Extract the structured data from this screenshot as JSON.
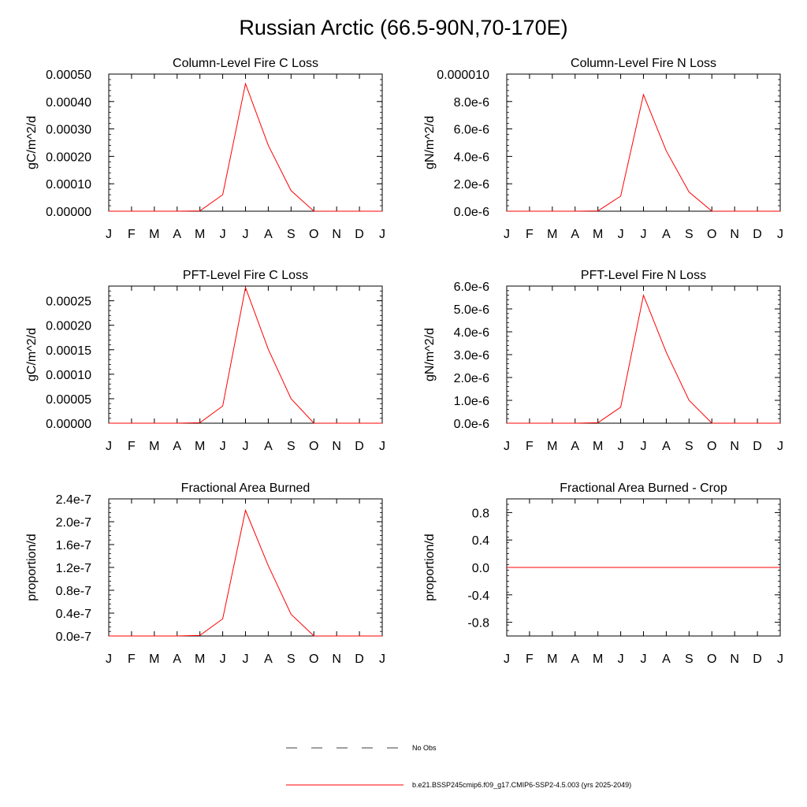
{
  "title": "Russian Arctic (66.5-90N,70-170E)",
  "colors": {
    "model": "#ff0000",
    "obs": "#000000",
    "axis": "#000000"
  },
  "legend": {
    "obs_label": "No Obs",
    "model_label": "b.e21.BSSP245cmip6.f09_g17.CMIP6-SSP2-4.5.003 (yrs 2025-2049)"
  },
  "chart_data": [
    {
      "type": "line",
      "title": "Column-Level Fire C Loss",
      "ylabel": "gC/m^2/d",
      "categories": [
        "J",
        "F",
        "M",
        "A",
        "M",
        "J",
        "J",
        "A",
        "S",
        "O",
        "N",
        "D",
        "J"
      ],
      "ylim": [
        0,
        0.0005
      ],
      "yticks": [
        0,
        0.0001,
        0.0002,
        0.0003,
        0.0004,
        0.0005
      ],
      "yticklabels": [
        "0.00000",
        "0.00010",
        "0.00020",
        "0.00030",
        "0.00040",
        "0.00050"
      ],
      "series": [
        {
          "values": [
            0,
            0,
            0,
            0,
            1e-06,
            6e-05,
            0.000465,
            0.00024,
            7.5e-05,
            3e-07,
            0,
            0,
            0
          ]
        }
      ]
    },
    {
      "type": "line",
      "title": "Column-Level Fire N Loss",
      "ylabel": "gN/m^2/d",
      "categories": [
        "J",
        "F",
        "M",
        "A",
        "M",
        "J",
        "J",
        "A",
        "S",
        "O",
        "N",
        "D",
        "J"
      ],
      "ylim": [
        0,
        1e-05
      ],
      "yticks": [
        0,
        2e-06,
        4e-06,
        6e-06,
        8e-06,
        1e-05
      ],
      "yticklabels": [
        "0.0e-6",
        "2.0e-6",
        "4.0e-6",
        "6.0e-6",
        "8.0e-6",
        "0.000010"
      ],
      "series": [
        {
          "values": [
            0,
            0,
            0,
            0,
            2e-08,
            1.1e-06,
            8.5e-06,
            4.4e-06,
            1.4e-06,
            5e-09,
            0,
            0,
            0
          ]
        }
      ]
    },
    {
      "type": "line",
      "title": "PFT-Level Fire C Loss",
      "ylabel": "gC/m^2/d",
      "categories": [
        "J",
        "F",
        "M",
        "A",
        "M",
        "J",
        "J",
        "A",
        "S",
        "O",
        "N",
        "D",
        "J"
      ],
      "ylim": [
        0,
        0.00028
      ],
      "yticks": [
        0,
        5e-05,
        0.0001,
        0.00015,
        0.0002,
        0.00025
      ],
      "yticklabels": [
        "0.00000",
        "0.00005",
        "0.00010",
        "0.00015",
        "0.00020",
        "0.00025"
      ],
      "series": [
        {
          "values": [
            0,
            0,
            0,
            0,
            1e-06,
            3.5e-05,
            0.000277,
            0.000151,
            5e-05,
            2e-07,
            0,
            0,
            0
          ]
        }
      ]
    },
    {
      "type": "line",
      "title": "PFT-Level Fire N Loss",
      "ylabel": "gN/m^2/d",
      "categories": [
        "J",
        "F",
        "M",
        "A",
        "M",
        "J",
        "J",
        "A",
        "S",
        "O",
        "N",
        "D",
        "J"
      ],
      "ylim": [
        0,
        6e-06
      ],
      "yticks": [
        0,
        1e-06,
        2e-06,
        3e-06,
        4e-06,
        5e-06,
        6e-06
      ],
      "yticklabels": [
        "0.0e-6",
        "1.0e-6",
        "2.0e-6",
        "3.0e-6",
        "4.0e-6",
        "5.0e-6",
        "6.0e-6"
      ],
      "series": [
        {
          "values": [
            0,
            0,
            0,
            0,
            2e-08,
            7e-07,
            5.6e-06,
            3.1e-06,
            1e-06,
            4e-09,
            0,
            0,
            0
          ]
        }
      ]
    },
    {
      "type": "line",
      "title": "Fractional Area Burned",
      "ylabel": "proportion/d",
      "categories": [
        "J",
        "F",
        "M",
        "A",
        "M",
        "J",
        "J",
        "A",
        "S",
        "O",
        "N",
        "D",
        "J"
      ],
      "ylim": [
        0,
        2.4e-07
      ],
      "yticks": [
        0,
        4e-08,
        8e-08,
        1.2e-07,
        1.6e-07,
        2e-07,
        2.4e-07
      ],
      "yticklabels": [
        "0.0e-7",
        "0.4e-7",
        "0.8e-7",
        "1.2e-7",
        "1.6e-7",
        "2.0e-7",
        "2.4e-7"
      ],
      "series": [
        {
          "values": [
            0,
            0,
            0,
            0,
            1e-09,
            3e-08,
            2.2e-07,
            1.23e-07,
            3.8e-08,
            2e-10,
            0,
            0,
            0
          ]
        }
      ]
    },
    {
      "type": "line",
      "title": "Fractional Area Burned - Crop",
      "ylabel": "proportion/d",
      "categories": [
        "J",
        "F",
        "M",
        "A",
        "M",
        "J",
        "J",
        "A",
        "S",
        "O",
        "N",
        "D",
        "J"
      ],
      "ylim": [
        -1,
        1
      ],
      "yticks": [
        -0.8,
        -0.4,
        0,
        0.4,
        0.8
      ],
      "yticklabels": [
        "-0.8",
        "-0.4",
        "0.0",
        "0.4",
        "0.8"
      ],
      "series": [
        {
          "values": [
            0,
            0,
            0,
            0,
            0,
            0,
            0,
            0,
            0,
            0,
            0,
            0,
            0
          ]
        }
      ]
    }
  ]
}
